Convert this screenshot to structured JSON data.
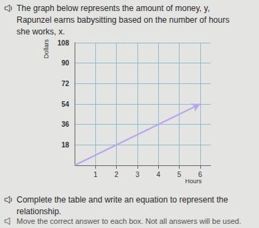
{
  "question": "The graph below represents the amount of money, y, Rapunzel earns babysitting based on the number of hours she works, x.",
  "chart_data": {
    "type": "line",
    "x_label": "Hours",
    "y_label": "Dollars",
    "x": [
      0,
      6
    ],
    "values": [
      0,
      54
    ],
    "color": "#b7a6ec",
    "marker": "arrow",
    "xlim": [
      0,
      6.5
    ],
    "xticks": [
      1,
      2,
      3,
      4,
      5,
      6
    ],
    "ylim": [
      0,
      108
    ],
    "yticks": [
      18,
      36,
      54,
      72,
      90,
      108
    ],
    "grid": true
  },
  "instructions": [
    "Complete the table and write an equation to represent the relationship.",
    "Move the correct answer to each box. Not all answers will be used."
  ]
}
